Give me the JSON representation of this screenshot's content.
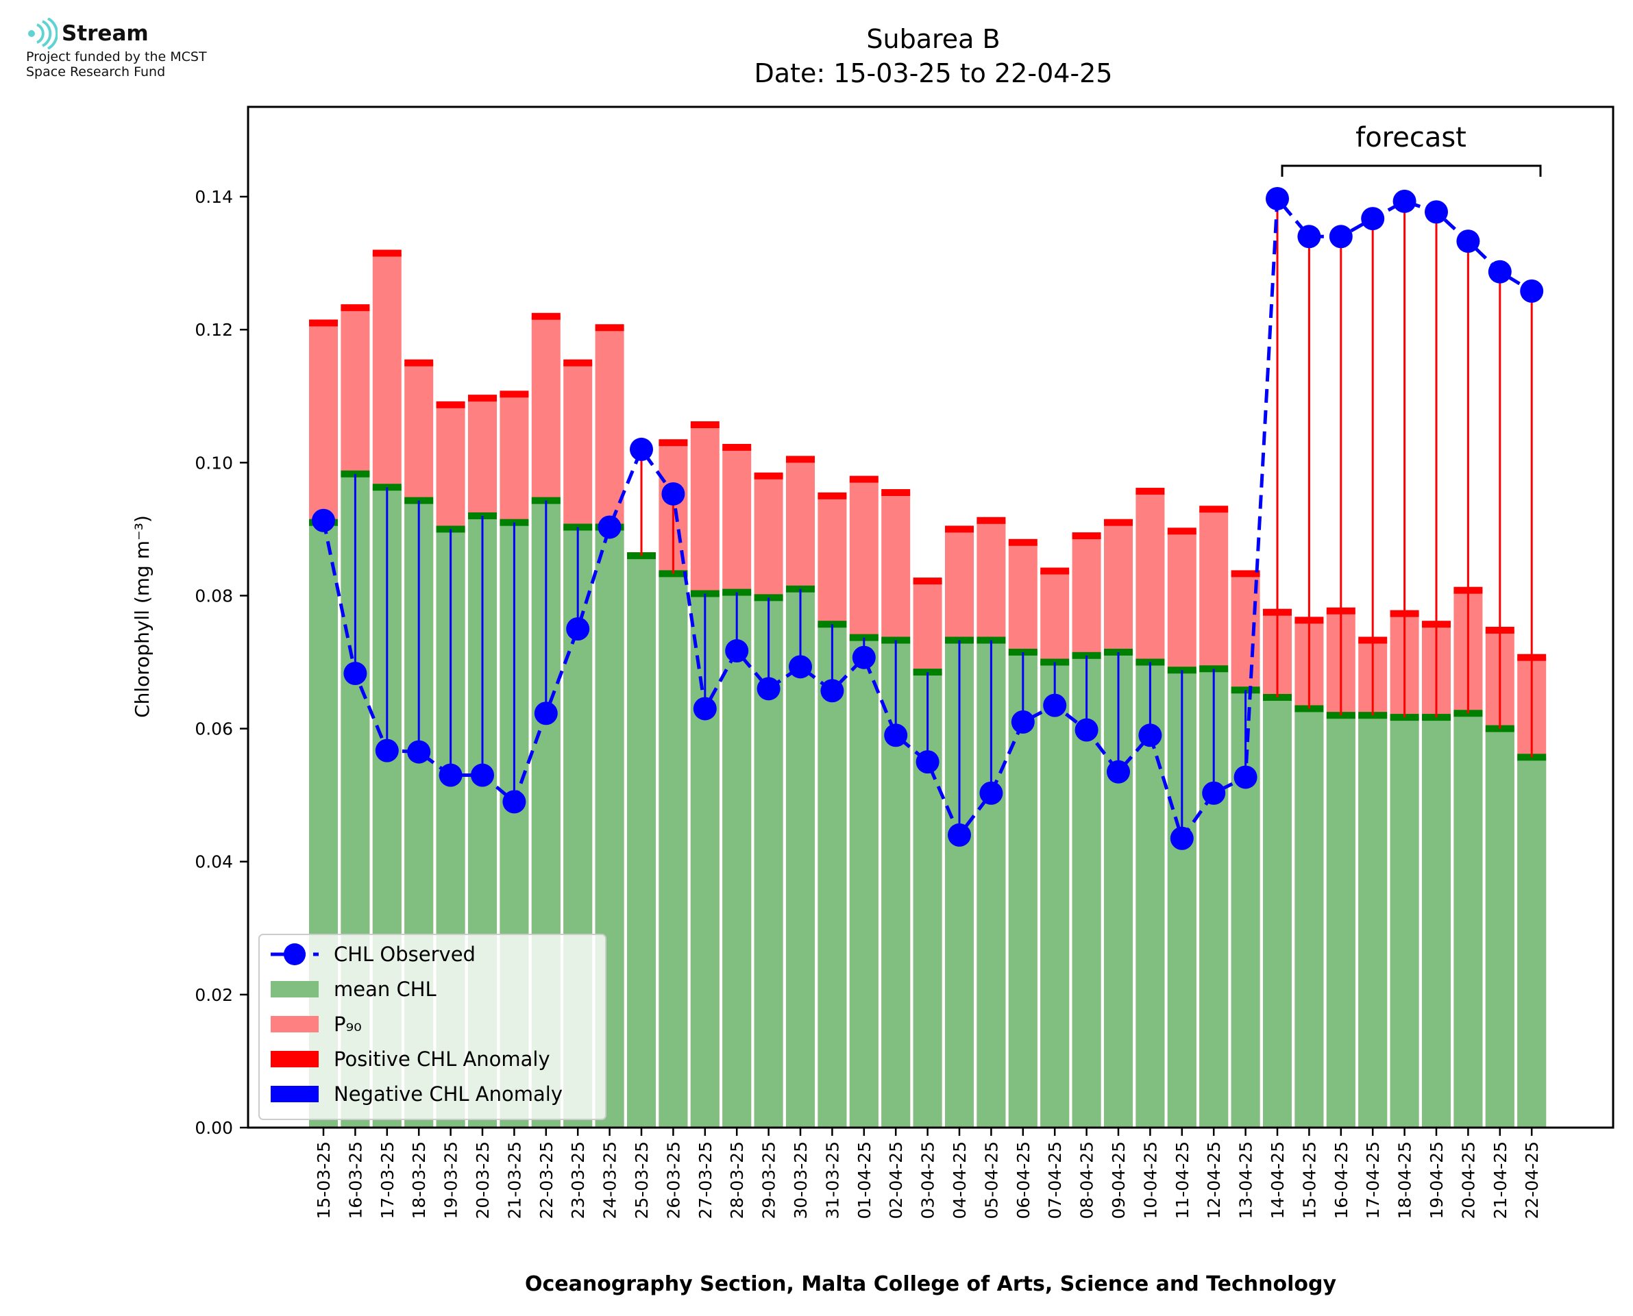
{
  "logo": {
    "name": "Stream",
    "tagline_1": "Project funded by the MCST",
    "tagline_2": "Space Research Fund",
    "color": "#5fd3d3"
  },
  "chart_data": {
    "type": "bar",
    "title_line1": "Subarea B",
    "title_line2": "Date: 15-03-25 to 22-04-25",
    "xlabel": "Oceanography Section, Malta College of Arts, Science and Technology",
    "ylabel": "Chlorophyll (mg m⁻³)",
    "ylim": [
      0,
      0.1535
    ],
    "yticks": [
      0.0,
      0.02,
      0.04,
      0.06,
      0.08,
      0.1,
      0.12,
      0.14
    ],
    "ytick_labels": [
      "0.00",
      "0.02",
      "0.04",
      "0.06",
      "0.08",
      "0.10",
      "0.12",
      "0.14"
    ],
    "categories": [
      "15-03-25",
      "16-03-25",
      "17-03-25",
      "18-03-25",
      "19-03-25",
      "20-03-25",
      "21-03-25",
      "22-03-25",
      "23-03-25",
      "24-03-25",
      "25-03-25",
      "26-03-25",
      "27-03-25",
      "28-03-25",
      "29-03-25",
      "30-03-25",
      "31-03-25",
      "01-04-25",
      "02-04-25",
      "03-04-25",
      "04-04-25",
      "05-04-25",
      "06-04-25",
      "07-04-25",
      "08-04-25",
      "09-04-25",
      "10-04-25",
      "11-04-25",
      "12-04-25",
      "13-04-25",
      "14-04-25",
      "15-04-25",
      "16-04-25",
      "17-04-25",
      "18-04-25",
      "19-04-25",
      "20-04-25",
      "21-04-25",
      "22-04-25"
    ],
    "series": [
      {
        "name": "CHL Observed",
        "values": [
          0.0913,
          0.0683,
          0.0567,
          0.0565,
          0.053,
          0.053,
          0.049,
          0.0623,
          0.075,
          0.0903,
          0.102,
          0.0953,
          0.063,
          0.0717,
          0.066,
          0.0693,
          0.0657,
          0.0707,
          0.059,
          0.055,
          0.044,
          0.0503,
          0.061,
          0.0635,
          0.0598,
          0.0535,
          0.059,
          0.0435,
          0.0503,
          0.0527,
          0.1397,
          0.134,
          0.134,
          0.1367,
          0.1393,
          0.1377,
          0.1333,
          0.1287,
          0.1258
        ]
      },
      {
        "name": "mean CHL",
        "values": [
          0.091,
          0.0983,
          0.0963,
          0.0943,
          0.09,
          0.092,
          0.091,
          0.0943,
          0.0903,
          0.0903,
          0.086,
          0.0833,
          0.0803,
          0.0805,
          0.0797,
          0.081,
          0.0757,
          0.0737,
          0.0733,
          0.0685,
          0.0733,
          0.0733,
          0.0715,
          0.07,
          0.071,
          0.0715,
          0.07,
          0.0688,
          0.069,
          0.0658,
          0.0647,
          0.063,
          0.062,
          0.062,
          0.0617,
          0.0617,
          0.0623,
          0.06,
          0.0557
        ]
      },
      {
        "name": "P₉₀",
        "values": [
          0.121,
          0.1233,
          0.1315,
          0.115,
          0.1087,
          0.1097,
          0.1103,
          0.122,
          0.115,
          0.1203,
          0.086,
          0.103,
          0.1057,
          0.1023,
          0.098,
          0.1005,
          0.095,
          0.0975,
          0.0955,
          0.0822,
          0.09,
          0.0913,
          0.088,
          0.0837,
          0.089,
          0.091,
          0.0957,
          0.0897,
          0.093,
          0.0833,
          0.0775,
          0.0763,
          0.0777,
          0.0733,
          0.0773,
          0.0757,
          0.0808,
          0.0748,
          0.0707
        ]
      }
    ],
    "legend": {
      "position": "lower-left",
      "entries": [
        "CHL Observed",
        "mean CHL",
        "P₉₀",
        "Positive CHL Anomaly",
        "Negative CHL Anomaly"
      ]
    },
    "forecast": {
      "label": "forecast",
      "start": "14-04-25",
      "end": "22-04-25"
    },
    "colors": {
      "observed": "#0000ff",
      "mean": "#80bf80",
      "mean_edge": "#008000",
      "p90": "#ff8080",
      "p90_edge": "#ff0000",
      "positive": "#ff0000",
      "negative": "#0000ff"
    }
  }
}
